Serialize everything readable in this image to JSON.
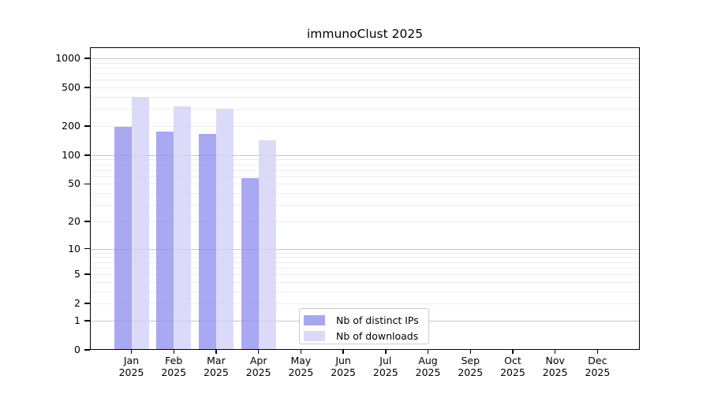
{
  "figure": {
    "background": "#ffffff",
    "text_color": "#000000",
    "spine_color": "#000000",
    "grid_minor_color": "#ededed",
    "grid_major_color": "#c6c6c6",
    "legend_border_color": "#cccccc"
  },
  "chart_data": {
    "type": "bar",
    "title": "immunoClust 2025",
    "categories": [
      "Jan",
      "Feb",
      "Mar",
      "Apr",
      "May",
      "Jun",
      "Jul",
      "Aug",
      "Sep",
      "Oct",
      "Nov",
      "Dec"
    ],
    "year_label": "2025",
    "series": [
      {
        "key": "distinct-ips",
        "name": "Nb of distinct IPs",
        "color": "#a7a7f0",
        "fill_rgba": "rgba(146,146,240,0.8)",
        "values": [
          195,
          175,
          165,
          58,
          null,
          null,
          null,
          null,
          null,
          null,
          null,
          null
        ]
      },
      {
        "key": "downloads",
        "name": "Nb of downloads",
        "color": "#dbdbf8",
        "fill_rgba": "rgba(210,210,248,0.8)",
        "values": [
          400,
          320,
          300,
          142,
          null,
          null,
          null,
          null,
          null,
          null,
          null,
          null
        ]
      }
    ],
    "yscale": "log1p",
    "yticks": [
      0,
      1,
      2,
      5,
      10,
      20,
      50,
      100,
      200,
      500,
      1000
    ],
    "ylim": [
      0,
      1300
    ],
    "grid": "horizontal, log minor + major decades",
    "legend_position": "lower center"
  }
}
